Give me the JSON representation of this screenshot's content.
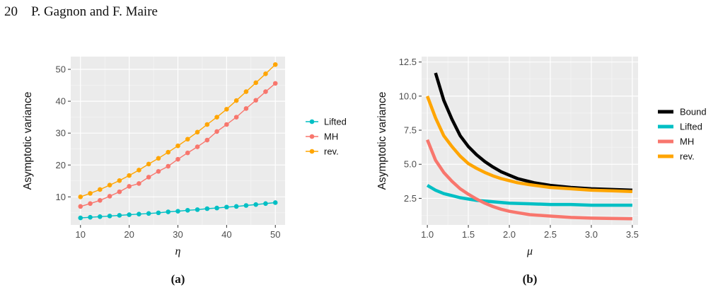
{
  "header": {
    "page_number": "20",
    "authors": "P. Gagnon and F. Maire"
  },
  "chart_data": [
    {
      "type": "line",
      "panel_label": "(a)",
      "title": "",
      "xlabel": "η",
      "ylabel": "Asymptotic variance",
      "xlim": [
        8,
        52
      ],
      "ylim": [
        1.2,
        54
      ],
      "xticks": [
        "10",
        "20",
        "30",
        "40",
        "50"
      ],
      "yticks": [
        "10",
        "20",
        "30",
        "40",
        "50"
      ],
      "grid": true,
      "markers": true,
      "legend_position": "right",
      "x": [
        10,
        12,
        14,
        16,
        18,
        20,
        22,
        24,
        26,
        28,
        30,
        32,
        34,
        36,
        38,
        40,
        42,
        44,
        46,
        48,
        50
      ],
      "series": [
        {
          "name": "Lifted",
          "color": "#00BFC4",
          "values": [
            3.4,
            3.6,
            3.8,
            4.0,
            4.2,
            4.4,
            4.6,
            4.8,
            5.0,
            5.3,
            5.5,
            5.8,
            6.0,
            6.3,
            6.5,
            6.8,
            7.0,
            7.3,
            7.6,
            7.9,
            8.2
          ]
        },
        {
          "name": "MH",
          "color": "#F8766D",
          "values": [
            7.0,
            7.9,
            8.9,
            10.2,
            11.6,
            13.3,
            14.2,
            16.2,
            18.0,
            19.6,
            21.8,
            23.8,
            25.7,
            27.8,
            30.5,
            32.7,
            35.0,
            37.7,
            40.3,
            43.0,
            45.6
          ]
        },
        {
          "name": "rev.",
          "color": "#FFA500",
          "values": [
            10.0,
            11.1,
            12.3,
            13.7,
            15.1,
            16.7,
            18.4,
            20.3,
            22.1,
            24.0,
            26.0,
            28.1,
            30.3,
            32.7,
            35.0,
            37.5,
            40.2,
            43.0,
            45.8,
            48.6,
            51.5
          ]
        }
      ]
    },
    {
      "type": "line",
      "panel_label": "(b)",
      "title": "",
      "xlabel": "μ",
      "ylabel": "Asymptotic variance",
      "xlim": [
        0.93,
        3.57
      ],
      "ylim": [
        0.55,
        12.9
      ],
      "xticks": [
        "1.0",
        "1.5",
        "2.0",
        "2.5",
        "3.0",
        "3.5"
      ],
      "yticks": [
        "2.5",
        "5.0",
        "7.5",
        "10.0",
        "12.5"
      ],
      "grid": true,
      "markers": false,
      "legend_position": "right",
      "series": [
        {
          "name": "Bound",
          "color": "#000000",
          "x": [
            1.1,
            1.2,
            1.3,
            1.4,
            1.5,
            1.6,
            1.7,
            1.8,
            1.9,
            2.0,
            2.1,
            2.2,
            2.3,
            2.5,
            2.75,
            3.0,
            3.25,
            3.5
          ],
          "values": [
            11.7,
            9.7,
            8.3,
            7.1,
            6.3,
            5.7,
            5.2,
            4.8,
            4.45,
            4.2,
            3.95,
            3.8,
            3.65,
            3.45,
            3.3,
            3.2,
            3.15,
            3.1
          ]
        },
        {
          "name": "Lifted",
          "color": "#00BFC4",
          "x": [
            1.0,
            1.1,
            1.2,
            1.3,
            1.4,
            1.5,
            1.6,
            1.7,
            1.8,
            1.9,
            2.0,
            2.25,
            2.5,
            2.75,
            3.0,
            3.25,
            3.5
          ],
          "values": [
            3.45,
            3.1,
            2.85,
            2.7,
            2.55,
            2.45,
            2.35,
            2.3,
            2.25,
            2.2,
            2.15,
            2.1,
            2.05,
            2.05,
            2.0,
            2.0,
            2.0
          ]
        },
        {
          "name": "MH",
          "color": "#F8766D",
          "x": [
            1.0,
            1.1,
            1.2,
            1.3,
            1.4,
            1.5,
            1.6,
            1.7,
            1.8,
            1.9,
            2.0,
            2.1,
            2.25,
            2.5,
            2.75,
            3.0,
            3.25,
            3.5
          ],
          "values": [
            6.8,
            5.3,
            4.4,
            3.75,
            3.2,
            2.8,
            2.45,
            2.15,
            1.9,
            1.7,
            1.55,
            1.45,
            1.3,
            1.2,
            1.1,
            1.05,
            1.02,
            1.0
          ]
        },
        {
          "name": "rev.",
          "color": "#FFA500",
          "x": [
            1.0,
            1.1,
            1.2,
            1.3,
            1.4,
            1.5,
            1.6,
            1.7,
            1.8,
            1.9,
            2.0,
            2.1,
            2.25,
            2.5,
            2.75,
            3.0,
            3.25,
            3.5
          ],
          "values": [
            10.0,
            8.4,
            7.1,
            6.3,
            5.6,
            5.05,
            4.7,
            4.4,
            4.15,
            3.95,
            3.8,
            3.65,
            3.5,
            3.3,
            3.2,
            3.1,
            3.05,
            3.0
          ]
        }
      ]
    }
  ]
}
